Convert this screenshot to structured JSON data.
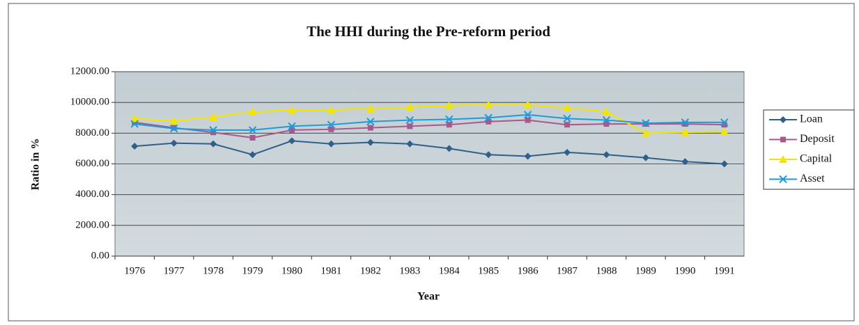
{
  "chart_data": {
    "type": "line",
    "title": "The HHI during the Pre-reform period",
    "x_label": "Year",
    "y_label": "Ratio in %",
    "categories": [
      "1976",
      "1977",
      "1978",
      "1979",
      "1980",
      "1981",
      "1982",
      "1983",
      "1984",
      "1985",
      "1986",
      "1987",
      "1988",
      "1989",
      "1990",
      "1991"
    ],
    "series": [
      {
        "name": "Loan",
        "color": "#2f5f8a",
        "marker": "diamond",
        "values": [
          7150,
          7350,
          7300,
          6600,
          7500,
          7300,
          7400,
          7300,
          7000,
          6600,
          6500,
          6750,
          6600,
          6400,
          6150,
          6000
        ]
      },
      {
        "name": "Deposit",
        "color": "#a8588a",
        "marker": "square",
        "values": [
          8700,
          8350,
          8050,
          7700,
          8200,
          8250,
          8350,
          8450,
          8550,
          8750,
          8850,
          8550,
          8600,
          8600,
          8600,
          8550
        ]
      },
      {
        "name": "Capital",
        "color": "#f2e600",
        "marker": "triangle",
        "values": [
          8950,
          8800,
          9050,
          9400,
          9500,
          9500,
          9600,
          9700,
          9800,
          9850,
          9850,
          9650,
          9400,
          8000,
          8050,
          8100
        ]
      },
      {
        "name": "Asset",
        "color": "#1e9bd7",
        "marker": "x",
        "values": [
          8600,
          8300,
          8200,
          8200,
          8450,
          8550,
          8750,
          8850,
          8900,
          9000,
          9200,
          8950,
          8850,
          8650,
          8700,
          8700
        ]
      }
    ],
    "ylim": [
      0,
      12000
    ],
    "yticks": [
      {
        "value": 0,
        "label": "0.00"
      },
      {
        "value": 2000,
        "label": "2000.00"
      },
      {
        "value": 4000,
        "label": "4000.00"
      },
      {
        "value": 6000,
        "label": "6000.00"
      },
      {
        "value": 8000,
        "label": "8000.00"
      },
      {
        "value": 10000,
        "label": "10000.00"
      },
      {
        "value": 12000,
        "label": "12000.00"
      }
    ],
    "grid": true,
    "legend": "right"
  }
}
